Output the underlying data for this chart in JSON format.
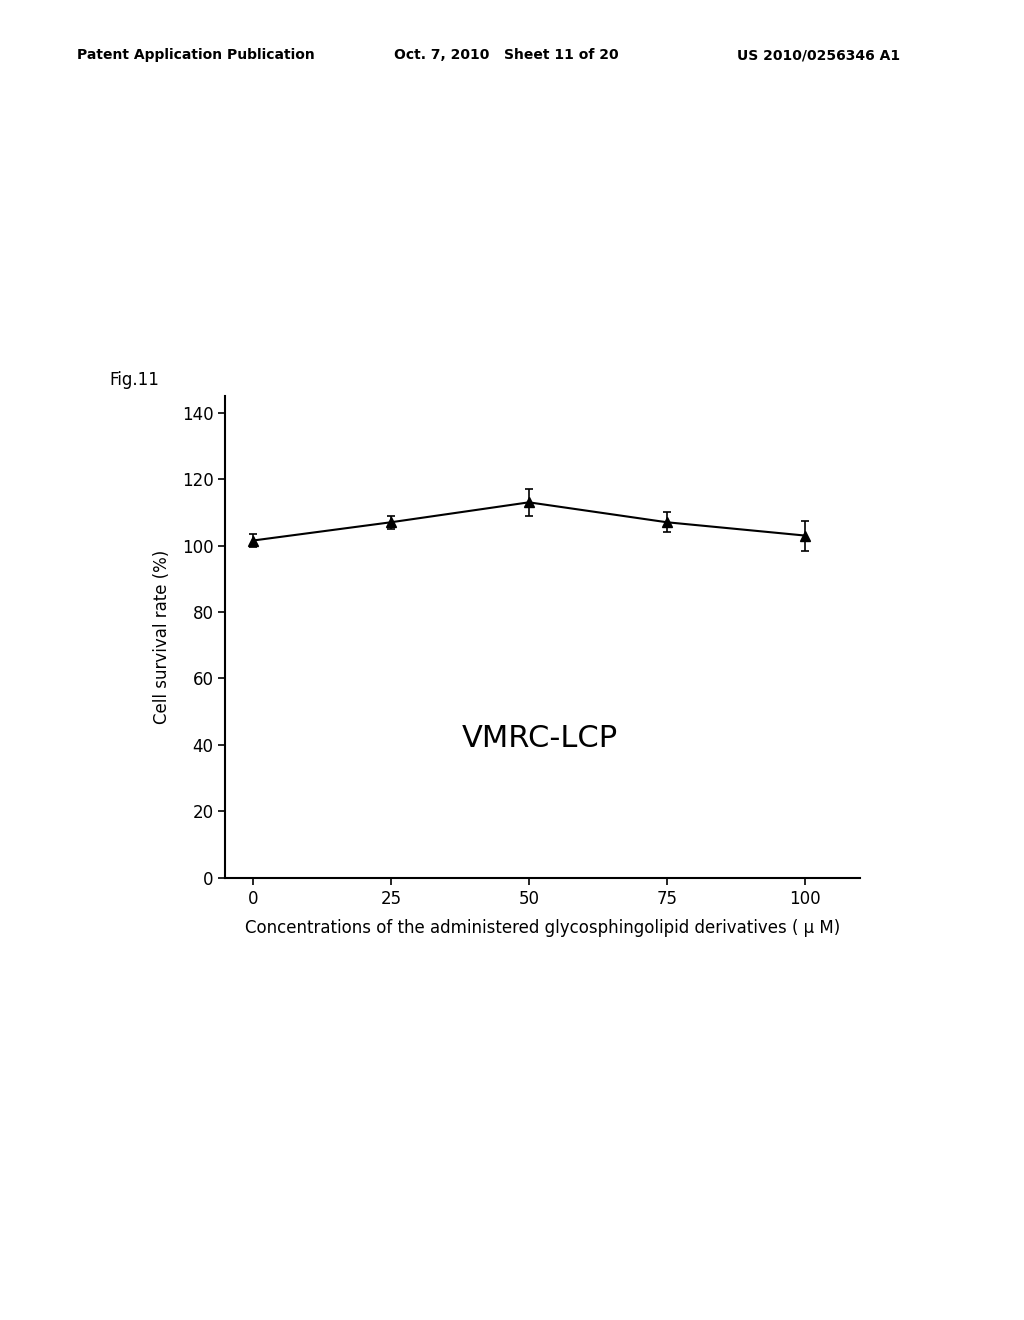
{
  "x": [
    0,
    25,
    50,
    75,
    100
  ],
  "y": [
    101.5,
    107.0,
    113.0,
    107.0,
    103.0
  ],
  "yerr": [
    2.0,
    2.0,
    4.0,
    3.0,
    4.5
  ],
  "xlabel": "Concentrations of the administered glycosphingolipid derivatives ( μ M)",
  "ylabel": "Cell survival rate (%)",
  "fig_label": "Fig.11",
  "cell_line_label": "VMRC-LCP",
  "ylim": [
    0,
    145
  ],
  "xlim": [
    -5,
    110
  ],
  "yticks": [
    0,
    20,
    40,
    60,
    80,
    100,
    120,
    140
  ],
  "xticks": [
    0,
    25,
    50,
    75,
    100
  ],
  "header_left": "Patent Application Publication",
  "header_mid": "Oct. 7, 2010   Sheet 11 of 20",
  "header_right": "US 2010/0256346 A1",
  "background_color": "#ffffff",
  "line_color": "#000000",
  "marker_color": "#000000",
  "font_size_axis_label": 12,
  "font_size_tick": 12,
  "font_size_fig_label": 12,
  "font_size_cell_line": 22,
  "font_size_header": 10
}
